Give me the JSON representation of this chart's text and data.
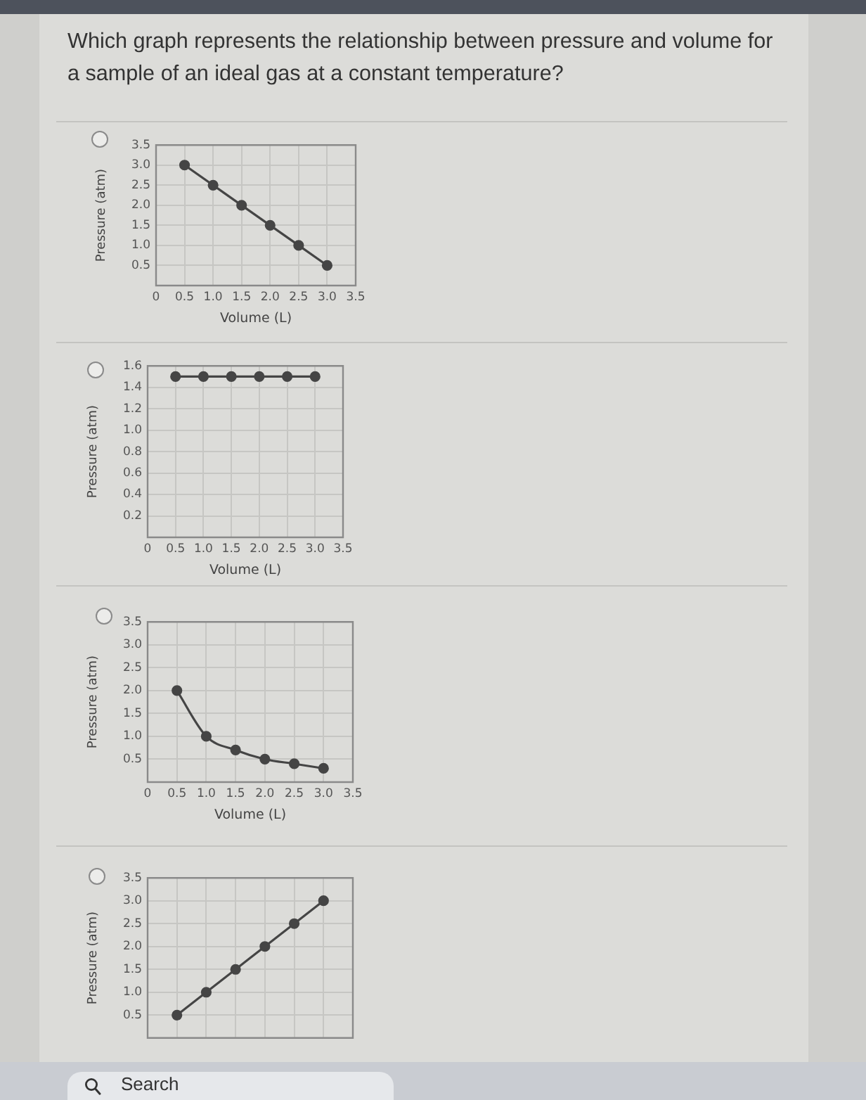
{
  "chart_data": [
    {
      "type": "line",
      "title": "Which graph represents the relationship between pressure and volume for a sample of an ideal gas at a constant temperature?",
      "xlabel": "Volume (L)",
      "ylabel": "Pressure (atm)",
      "x": [
        0.5,
        1,
        1.5,
        2,
        2.5,
        3
      ],
      "values": [
        3,
        2.5,
        2,
        1.5,
        1,
        0.5
      ],
      "color": "#454545",
      "xlim": [
        0,
        3.5
      ],
      "xticks": [
        0,
        0.5,
        {
          "value": 1,
          "label": "1.0"
        },
        1.5,
        {
          "value": 2,
          "label": "2.0"
        },
        2.5,
        {
          "value": 3,
          "label": "3.0"
        },
        3.5
      ],
      "ylim": [
        0,
        3.5
      ],
      "yticks": [
        0.5,
        {
          "value": 1,
          "label": "1.0"
        },
        1.5,
        {
          "value": 2,
          "label": "2.0"
        },
        2.5,
        {
          "value": 3,
          "label": "3.0"
        },
        3.5
      ],
      "grid": true,
      "marker": "circle",
      "line_style": "solid"
    },
    {
      "type": "line",
      "xlabel": "Volume (L)",
      "ylabel": "Pressure (atm)",
      "x": [
        0.5,
        1,
        1.5,
        2,
        2.5,
        3
      ],
      "values": [
        1.5,
        1.5,
        1.5,
        1.5,
        1.5,
        1.5
      ],
      "color": "#454545",
      "xlim": [
        0,
        3.5
      ],
      "xticks": [
        0,
        0.5,
        {
          "value": 1,
          "label": "1.0"
        },
        1.5,
        {
          "value": 2,
          "label": "2.0"
        },
        2.5,
        {
          "value": 3,
          "label": "3.0"
        },
        3.5
      ],
      "ylim": [
        0,
        1.6
      ],
      "yticks": [
        0.2,
        0.4,
        0.6,
        0.8,
        {
          "value": 1,
          "label": "1.0"
        },
        1.2,
        1.4,
        1.6
      ],
      "grid": true,
      "marker": "circle",
      "line_style": "solid"
    },
    {
      "type": "line",
      "xlabel": "Volume (L)",
      "ylabel": "Pressure (atm)",
      "x": [
        0.5,
        1,
        1.5,
        2,
        2.5,
        3
      ],
      "values": [
        2,
        1,
        0.7,
        0.5,
        0.4,
        0.3
      ],
      "color": "#454545",
      "xlim": [
        0,
        3.5
      ],
      "xticks": [
        0,
        0.5,
        {
          "value": 1,
          "label": "1.0"
        },
        1.5,
        {
          "value": 2,
          "label": "2.0"
        },
        2.5,
        {
          "value": 3,
          "label": "3.0"
        },
        3.5
      ],
      "ylim": [
        0,
        3.5
      ],
      "yticks": [
        0.5,
        {
          "value": 1,
          "label": "1.0"
        },
        1.5,
        {
          "value": 2,
          "label": "2.0"
        },
        2.5,
        {
          "value": 3,
          "label": "3.0"
        },
        3.5
      ],
      "grid": true,
      "marker": "circle",
      "line_style": "solid"
    },
    {
      "type": "line",
      "ylabel": "Pressure (atm)",
      "x": [
        0.5,
        1,
        1.5,
        2,
        2.5,
        3
      ],
      "values": [
        0.5,
        1,
        1.5,
        2,
        2.5,
        3
      ],
      "color": "#454545",
      "xlim": [
        0,
        3.5
      ],
      "xticks": [
        0,
        0.5,
        1,
        1.5,
        2,
        2.5,
        3,
        3.5
      ],
      "ylim": [
        0,
        3.5
      ],
      "yticks": [
        0.5,
        {
          "value": 1,
          "label": "1.0"
        },
        1.5,
        {
          "value": 2,
          "label": "2.0"
        },
        2.5,
        {
          "value": 3,
          "label": "3.0"
        },
        3.5
      ],
      "grid": true,
      "marker": "circle",
      "line_style": "solid",
      "tick_labels": "y",
      "annotations": [
        "Search"
      ]
    }
  ]
}
